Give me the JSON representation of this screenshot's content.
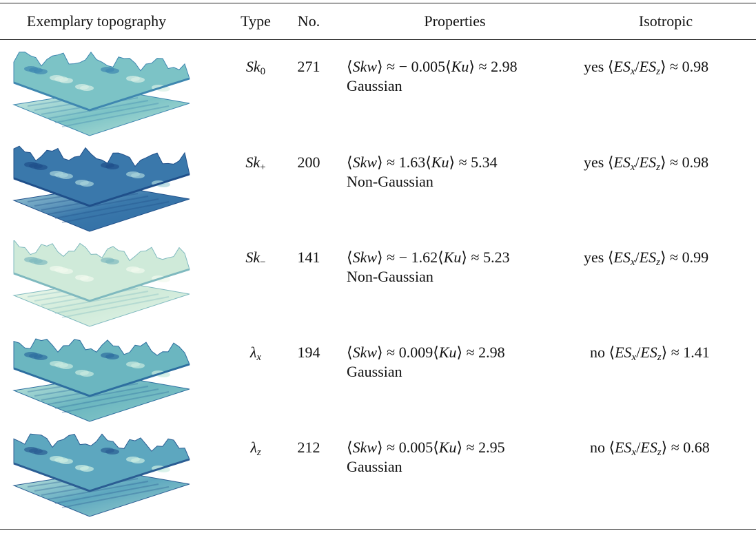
{
  "header": {
    "topography": "Exemplary topography",
    "type": "Type",
    "number": "No.",
    "properties": "Properties",
    "isotropic": "Isotropic"
  },
  "rows": [
    {
      "type": {
        "base": "Sk",
        "sub": "0"
      },
      "number": "271",
      "skw": "⟨Skw⟩ ≈ − 0.005",
      "ku": "⟨Ku⟩ ≈ 2.98",
      "distribution": "Gaussian",
      "isotropic": "yes",
      "ratio": "⟨ESx/ESz⟩ ≈ 0.98"
    },
    {
      "type": {
        "base": "Sk",
        "sub": "+"
      },
      "number": "200",
      "skw": "⟨Skw⟩ ≈ 1.63",
      "ku": "⟨Ku⟩ ≈ 5.34",
      "distribution": "Non-Gaussian",
      "isotropic": "yes",
      "ratio": "⟨ESx/ESz⟩ ≈ 0.98"
    },
    {
      "type": {
        "base": "Sk",
        "sub": "−"
      },
      "number": "141",
      "skw": "⟨Skw⟩ ≈ − 1.62",
      "ku": "⟨Ku⟩ ≈ 5.23",
      "distribution": "Non-Gaussian",
      "isotropic": "yes",
      "ratio": "⟨ESx/ESz⟩ ≈ 0.99"
    },
    {
      "type": {
        "base": "λ",
        "sub": "x"
      },
      "number": "194",
      "skw": "⟨Skw⟩ ≈ 0.009",
      "ku": "⟨Ku⟩ ≈ 2.98",
      "distribution": "Gaussian",
      "isotropic": "no",
      "ratio": "⟨ESx/ESz⟩ ≈ 1.41"
    },
    {
      "type": {
        "base": "λ",
        "sub": "z"
      },
      "number": "212",
      "skw": "⟨Skw⟩ ≈ 0.005",
      "ku": "⟨Ku⟩ ≈ 2.95",
      "distribution": "Gaussian",
      "isotropic": "no",
      "ratio": "⟨ESx/ESz⟩ ≈ 0.68"
    }
  ]
}
